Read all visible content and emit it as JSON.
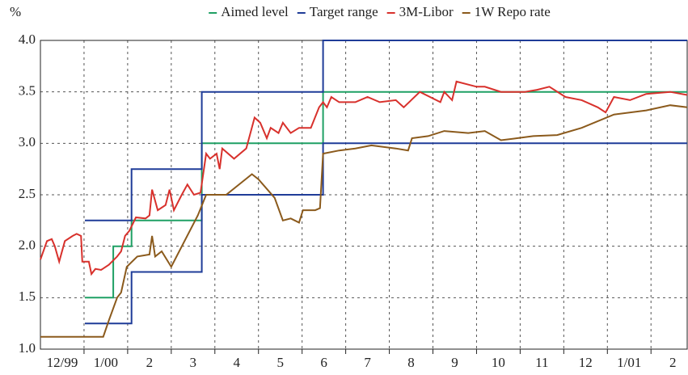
{
  "chart_data": {
    "type": "line",
    "y_unit": "%",
    "categories": [
      "12/99",
      "1/00",
      "2",
      "3",
      "4",
      "5",
      "6",
      "7",
      "8",
      "9",
      "10",
      "11",
      "12",
      "1/01",
      "2"
    ],
    "xlim": [
      0,
      14.83
    ],
    "xticks": [
      1,
      2,
      3,
      4,
      5,
      6,
      7,
      8,
      9,
      10,
      11,
      12,
      13,
      14
    ],
    "ylim": [
      1.0,
      4.0
    ],
    "yticks": [
      {
        "value": 1.0,
        "label": "1.0"
      },
      {
        "value": 1.5,
        "label": "1.5"
      },
      {
        "value": 2.0,
        "label": "2.0"
      },
      {
        "value": 2.5,
        "label": "2.5"
      },
      {
        "value": 3.0,
        "label": "3.0"
      },
      {
        "value": 3.5,
        "label": "3.5"
      },
      {
        "value": 4.0,
        "label": "4.0"
      }
    ],
    "grid": true,
    "legend": "top",
    "series": [
      {
        "name": "Aimed level",
        "color": "#1fa064",
        "x": [
          1.02,
          1.67,
          1.67,
          2.09,
          2.09,
          3.7,
          3.7,
          6.48,
          6.48,
          14.83
        ],
        "values": [
          1.5,
          1.5,
          2.0,
          2.0,
          2.25,
          2.25,
          3.0,
          3.0,
          3.5,
          3.5
        ]
      },
      {
        "name": "Target range",
        "color": "#1f3c98",
        "x": [
          1.02,
          2.09,
          2.09,
          3.7,
          3.7,
          6.48,
          6.48,
          14.83
        ],
        "values": [
          2.25,
          2.25,
          2.75,
          2.75,
          3.5,
          3.5,
          4.0,
          4.0
        ],
        "lower": [
          1.25,
          1.25,
          1.75,
          1.75,
          2.5,
          2.5,
          3.0,
          3.0
        ]
      },
      {
        "name": "3M-Libor",
        "color": "#d8312c",
        "x": [
          0,
          0.15,
          0.26,
          0.33,
          0.43,
          0.56,
          0.74,
          0.83,
          0.93,
          0.96,
          1.11,
          1.17,
          1.26,
          1.39,
          1.57,
          1.76,
          1.85,
          1.94,
          2.04,
          2.19,
          2.41,
          2.5,
          2.56,
          2.69,
          2.87,
          2.96,
          3.06,
          3.24,
          3.37,
          3.52,
          3.67,
          3.8,
          3.89,
          4.04,
          4.11,
          4.17,
          4.44,
          4.72,
          4.91,
          5.04,
          5.19,
          5.28,
          5.46,
          5.56,
          5.74,
          5.93,
          6.2,
          6.39,
          6.48,
          6.57,
          6.67,
          6.85,
          7.22,
          7.5,
          7.78,
          8.15,
          8.33,
          8.7,
          9.17,
          9.26,
          9.44,
          9.54,
          10.0,
          10.19,
          10.56,
          11.11,
          11.39,
          11.67,
          12.04,
          12.41,
          12.78,
          12.96,
          13.15,
          13.52,
          13.89,
          14.44,
          14.83
        ],
        "values": [
          1.87,
          2.05,
          2.07,
          2.0,
          1.85,
          2.05,
          2.1,
          2.12,
          2.1,
          1.85,
          1.85,
          1.73,
          1.78,
          1.77,
          1.82,
          1.9,
          1.95,
          2.1,
          2.15,
          2.28,
          2.27,
          2.3,
          2.55,
          2.35,
          2.4,
          2.55,
          2.35,
          2.5,
          2.6,
          2.5,
          2.52,
          2.9,
          2.85,
          2.9,
          2.75,
          2.95,
          2.85,
          2.95,
          3.25,
          3.2,
          3.05,
          3.15,
          3.1,
          3.2,
          3.1,
          3.15,
          3.15,
          3.35,
          3.4,
          3.35,
          3.45,
          3.4,
          3.4,
          3.45,
          3.4,
          3.42,
          3.35,
          3.5,
          3.4,
          3.5,
          3.42,
          3.6,
          3.55,
          3.55,
          3.5,
          3.5,
          3.52,
          3.55,
          3.45,
          3.42,
          3.35,
          3.3,
          3.45,
          3.42,
          3.48,
          3.5,
          3.47
        ]
      },
      {
        "name": "1W Repo rate",
        "color": "#8b5a1c",
        "x": [
          0,
          1.44,
          1.57,
          1.76,
          1.85,
          1.98,
          2.22,
          2.5,
          2.56,
          2.63,
          2.78,
          3.0,
          3.61,
          3.8,
          4.26,
          4.85,
          5.0,
          5.37,
          5.56,
          5.74,
          5.93,
          6.02,
          6.3,
          6.41,
          6.48,
          6.85,
          7.22,
          7.59,
          8.15,
          8.43,
          8.52,
          8.89,
          9.26,
          9.81,
          10.19,
          10.56,
          10.93,
          11.3,
          11.85,
          12.41,
          13.15,
          13.89,
          14.44,
          14.83
        ],
        "values": [
          1.12,
          1.12,
          1.28,
          1.5,
          1.55,
          1.8,
          1.9,
          1.92,
          2.1,
          1.9,
          1.95,
          1.8,
          2.3,
          2.5,
          2.5,
          2.7,
          2.65,
          2.47,
          2.25,
          2.27,
          2.23,
          2.35,
          2.35,
          2.37,
          2.9,
          2.93,
          2.95,
          2.98,
          2.95,
          2.93,
          3.05,
          3.07,
          3.12,
          3.1,
          3.12,
          3.03,
          3.05,
          3.07,
          3.08,
          3.15,
          3.28,
          3.32,
          3.37,
          3.35
        ]
      }
    ]
  }
}
